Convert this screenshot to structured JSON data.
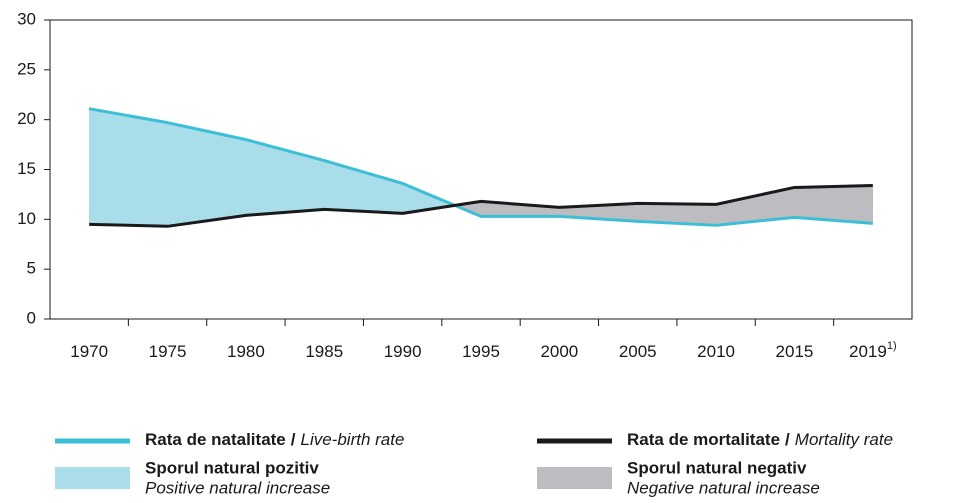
{
  "chart_data": {
    "type": "line",
    "categories": [
      "1970",
      "1975",
      "1980",
      "1985",
      "1990",
      "1995",
      "2000",
      "2005",
      "2010",
      "2015",
      "2019"
    ],
    "category_notes": [
      null,
      null,
      null,
      null,
      null,
      null,
      null,
      null,
      null,
      null,
      "1)"
    ],
    "series": [
      {
        "name": "Rata de natalitate",
        "name_en": "Live-birth rate",
        "color": "#3cbfd6",
        "values": [
          21.1,
          19.7,
          18.0,
          15.9,
          13.6,
          10.3,
          10.3,
          9.8,
          9.4,
          10.2,
          9.6
        ]
      },
      {
        "name": "Rata de mortalitate",
        "name_en": "Mortality rate",
        "color": "#1a1a1a",
        "values": [
          9.5,
          9.3,
          10.4,
          11.0,
          10.6,
          11.8,
          11.2,
          11.6,
          11.5,
          13.2,
          13.4
        ]
      }
    ],
    "legend_separator": "/",
    "areas": [
      {
        "name": "Sporul natural pozitiv",
        "name_en": "Positive natural increase",
        "color": "#a8dde9"
      },
      {
        "name": "Sporul natural negativ",
        "name_en": "Negative natural increase",
        "color": "#bdbdc1"
      }
    ],
    "ylim": [
      0,
      30
    ],
    "yticks": [
      0,
      5,
      10,
      15,
      20,
      25,
      30
    ]
  }
}
